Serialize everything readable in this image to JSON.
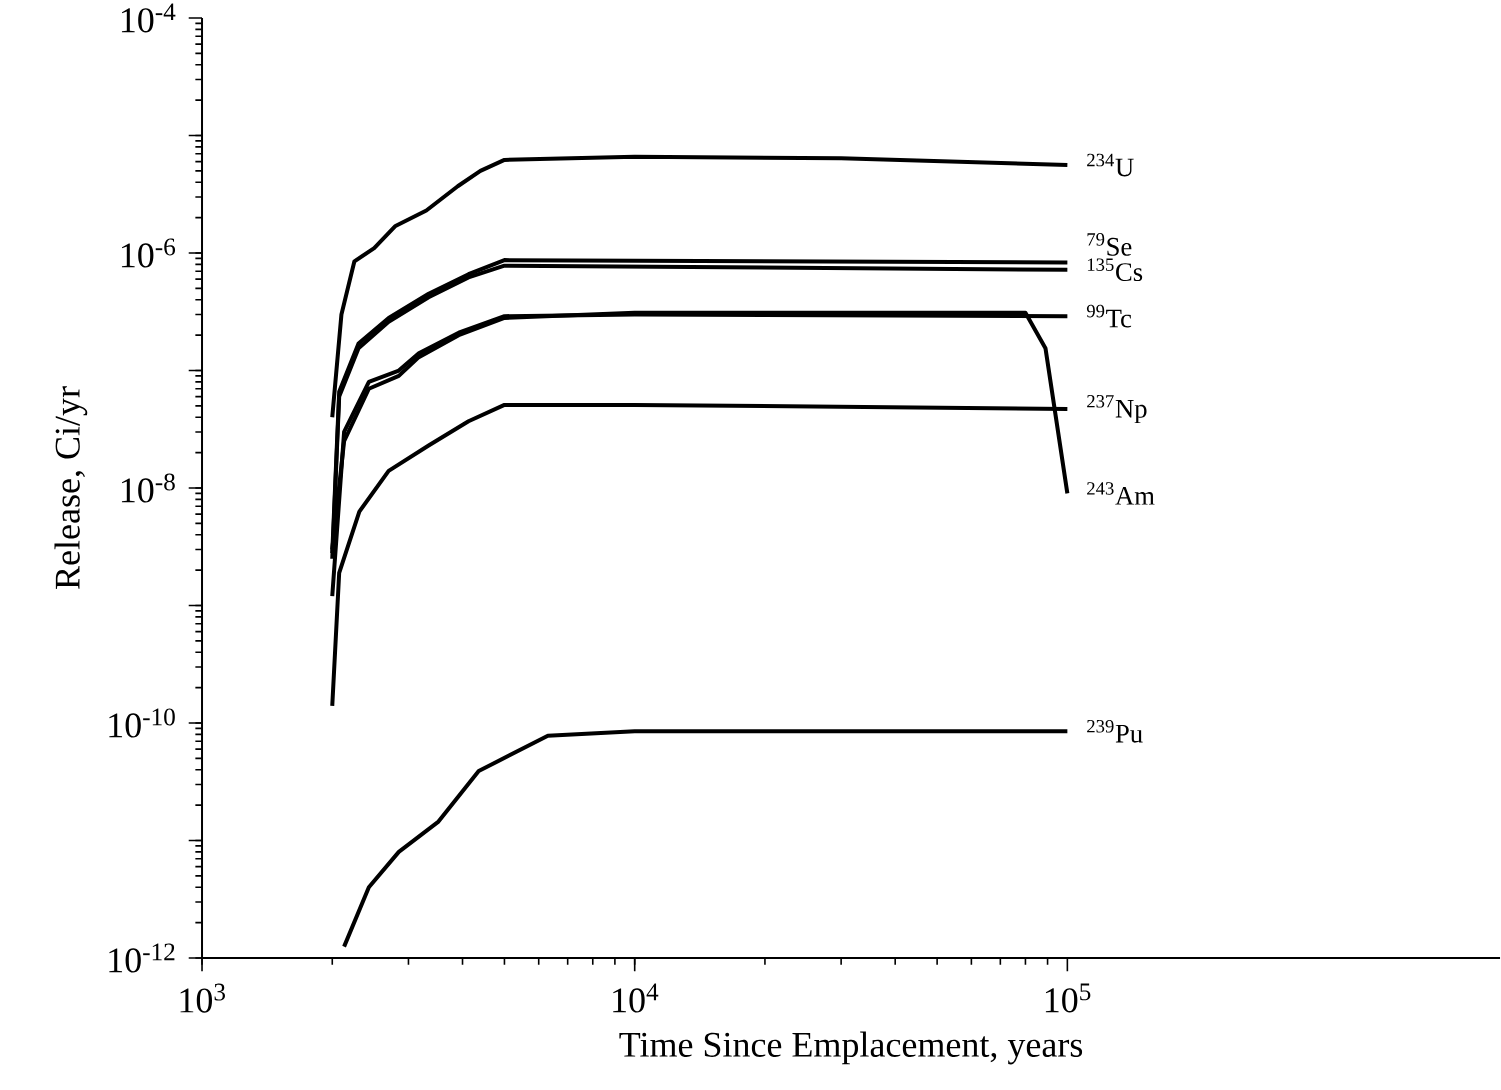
{
  "chart_data": {
    "type": "line",
    "xlabel": "Time Since Emplacement, years",
    "ylabel": "Release, Ci/yr",
    "log": "xy",
    "xlim": [
      1000,
      1000000
    ],
    "ylim": [
      1e-12,
      0.0001
    ],
    "xticks": [
      {
        "value": 1000,
        "label": "10$^{3}$"
      },
      {
        "value": 10000,
        "label": "10$^{4}$"
      },
      {
        "value": 100000,
        "label": "10$^{5}$"
      }
    ],
    "yticks": [
      {
        "value": 1e-12,
        "label": "10$^{-12}$"
      },
      {
        "value": 1e-11,
        "label": null
      },
      {
        "value": 1e-10,
        "label": "10$^{-10}$"
      },
      {
        "value": 1e-09,
        "label": null
      },
      {
        "value": 1e-08,
        "label": "10$^{-8}$"
      },
      {
        "value": 1e-07,
        "label": null
      },
      {
        "value": 1e-06,
        "label": "10$^{-6}$"
      },
      {
        "value": 1e-05,
        "label": null
      },
      {
        "value": 0.0001,
        "label": "10$^{-4}$"
      }
    ],
    "series": [
      {
        "name": "$^{234}$U",
        "color": "#000000",
        "x": [
          2000,
          2100,
          2250,
          2500,
          2800,
          3300,
          3900,
          4400,
          5000,
          10000,
          30000,
          100000
        ],
        "values": [
          4e-08,
          3e-07,
          8.5e-07,
          1.1e-06,
          1.7e-06,
          2.3e-06,
          3.7e-06,
          5e-06,
          6.2e-06,
          6.6e-06,
          6.4e-06,
          5.6e-06
        ]
      },
      {
        "name": "$^{79}$Se",
        "color": "#000000",
        "x": [
          2000,
          2075,
          2300,
          2700,
          3340,
          4130,
          5000,
          100000
        ],
        "values": [
          2.8e-09,
          6.6e-08,
          1.7e-07,
          2.8e-07,
          4.5e-07,
          6.6e-07,
          8.7e-07,
          8.3e-07
        ]
      },
      {
        "name": "$^{135}$Cs",
        "color": "#000000",
        "x": [
          2000,
          2075,
          2300,
          2700,
          3340,
          4130,
          5000,
          100000
        ],
        "values": [
          2.5e-09,
          6e-08,
          1.55e-07,
          2.6e-07,
          4.2e-07,
          6.2e-07,
          7.8e-07,
          7.2e-07
        ]
      },
      {
        "name": "$^{99}$Tc",
        "color": "#000000",
        "x": [
          2000,
          2130,
          2430,
          2850,
          3170,
          3920,
          5000,
          10000,
          100000
        ],
        "values": [
          1.2e-09,
          3e-08,
          8e-08,
          1e-07,
          1.4e-07,
          2.1e-07,
          2.9e-07,
          3e-07,
          2.9e-07
        ]
      },
      {
        "name": "$^{237}$Np",
        "color": "#000000",
        "x": [
          2000,
          2075,
          2310,
          2700,
          3340,
          4130,
          5000,
          10000,
          100000
        ],
        "values": [
          1.4e-10,
          1.9e-09,
          6.3e-09,
          1.4e-08,
          2.3e-08,
          3.7e-08,
          5.1e-08,
          5.1e-08,
          4.7e-08
        ]
      },
      {
        "name": "$^{243}$Am",
        "color": "#000000",
        "x": [
          2000,
          2130,
          2430,
          2850,
          3170,
          3920,
          5000,
          10000,
          80000,
          89000,
          100000
        ],
        "values": [
          3e-09,
          2.5e-08,
          7e-08,
          9e-08,
          1.3e-07,
          2e-07,
          2.8e-07,
          3.1e-07,
          3.1e-07,
          1.55e-07,
          9e-09
        ]
      },
      {
        "name": "$^{239}$Pu",
        "color": "#000000",
        "x": [
          2130,
          2430,
          2850,
          3520,
          4360,
          6300,
          10000,
          100000
        ],
        "values": [
          1.25e-12,
          4e-12,
          8e-12,
          1.45e-11,
          3.9e-11,
          7.8e-11,
          8.5e-11,
          8.5e-11
        ]
      }
    ]
  }
}
